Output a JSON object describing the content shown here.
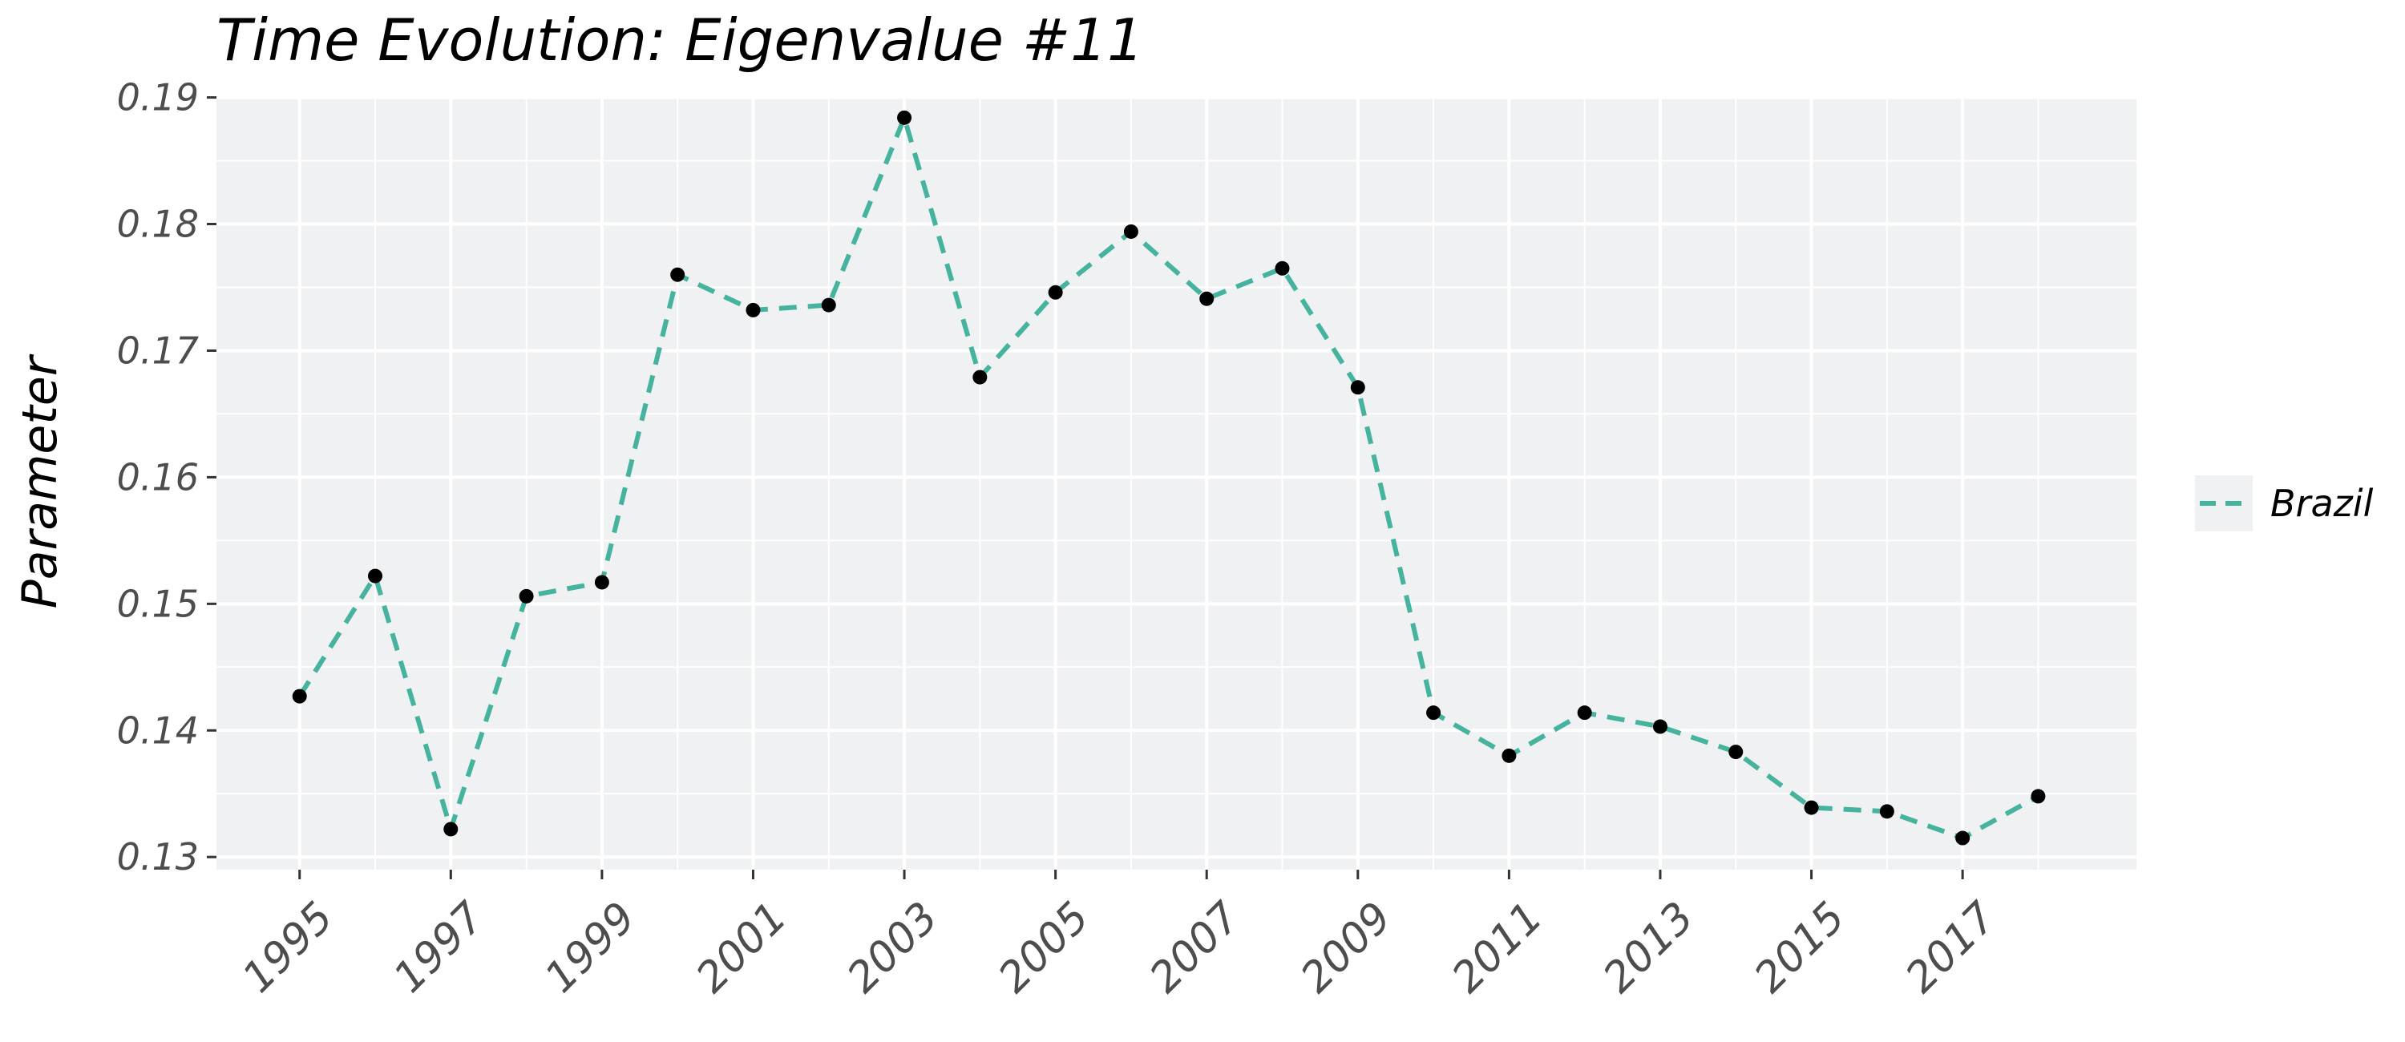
{
  "chart_data": {
    "type": "line",
    "title": "Time Evolution: Eigenvalue #11",
    "xlabel": "",
    "ylabel": "Parameter",
    "x": [
      1995,
      1996,
      1997,
      1998,
      1999,
      2000,
      2001,
      2002,
      2003,
      2004,
      2005,
      2006,
      2007,
      2008,
      2009,
      2010,
      2011,
      2012,
      2013,
      2014,
      2015,
      2016,
      2017,
      2018
    ],
    "xlim": [
      1993.9,
      2019.3
    ],
    "ylim": [
      0.129,
      0.1901
    ],
    "x_ticks": [
      1995,
      1997,
      1999,
      2001,
      2003,
      2005,
      2007,
      2009,
      2011,
      2013,
      2015,
      2017
    ],
    "x_tick_labels": [
      "1995",
      "1997",
      "1999",
      "2001",
      "2003",
      "2005",
      "2007",
      "2009",
      "2011",
      "2013",
      "2015",
      "2017"
    ],
    "y_ticks": [
      0.13,
      0.14,
      0.15,
      0.16,
      0.17,
      0.18,
      0.19
    ],
    "y_tick_labels": [
      "0.13",
      "0.14",
      "0.15",
      "0.16",
      "0.17",
      "0.18",
      "0.19"
    ],
    "series": [
      {
        "name": "Brazil",
        "color": "#45b39d",
        "line_style": "dashed",
        "marker_color": "#000000",
        "values": [
          0.1427,
          0.1522,
          0.1322,
          0.1506,
          0.1517,
          0.176,
          0.1732,
          0.1736,
          0.1884,
          0.1679,
          0.1746,
          0.1794,
          0.1741,
          0.1765,
          0.1671,
          0.1414,
          0.138,
          0.1414,
          0.1403,
          0.1383,
          0.1339,
          0.1336,
          0.1315,
          0.1348
        ]
      }
    ],
    "grid": true,
    "legend": "right"
  }
}
